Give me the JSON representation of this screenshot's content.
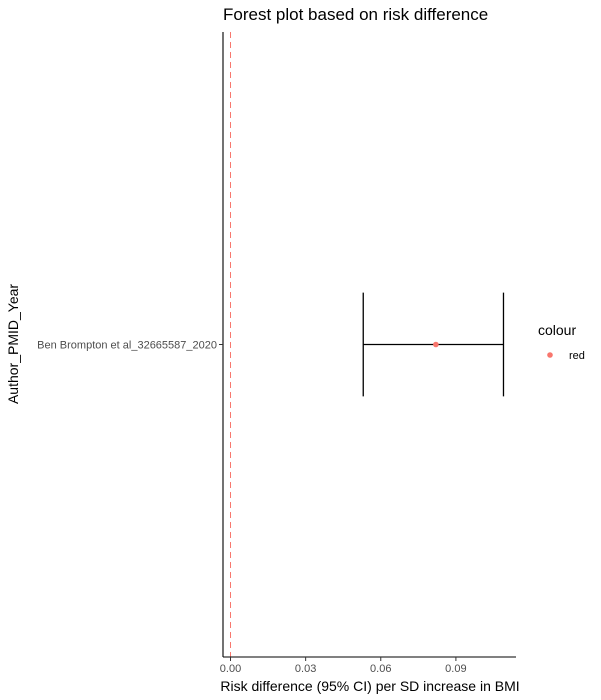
{
  "chart_data": {
    "type": "scatter",
    "title": "Forest plot based on risk difference",
    "xlabel": "Risk difference (95% CI) per SD increase in BMI",
    "ylabel": "Author_PMID_Year",
    "xlim": [
      -0.003,
      0.114
    ],
    "x_ticks": [
      0.0,
      0.03,
      0.06,
      0.09
    ],
    "x_tick_labels": [
      "0.00",
      "0.03",
      "0.06",
      "0.09"
    ],
    "categories": [
      "Ben Brompton et al_32665587_2020"
    ],
    "reference_line": {
      "x": 0,
      "style": "dashed",
      "color": "#f8766d"
    },
    "points": [
      {
        "label": "Ben Brompton et al_32665587_2020",
        "estimate": 0.082,
        "ci_lower": 0.053,
        "ci_upper": 0.109
      }
    ],
    "legend": {
      "title": "colour",
      "entries": [
        {
          "label": "red",
          "color": "#f8766d"
        }
      ],
      "position": "right"
    },
    "grid": false
  }
}
